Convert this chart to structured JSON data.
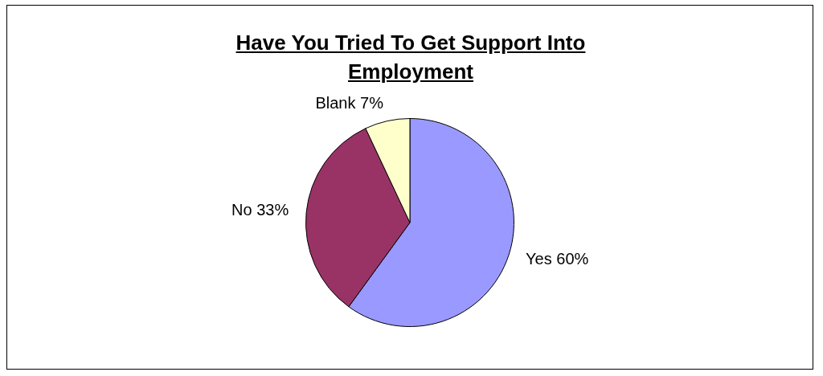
{
  "chart_data": {
    "type": "pie",
    "title": "Have You Tried To Get Support Into Employment",
    "categories": [
      "Yes",
      "No",
      "Blank"
    ],
    "values": [
      60,
      33,
      7
    ],
    "value_labels": [
      "60%",
      "33%",
      "7%"
    ],
    "colors": [
      "#9999ff",
      "#993366",
      "#ffffcc"
    ],
    "legend": false
  }
}
